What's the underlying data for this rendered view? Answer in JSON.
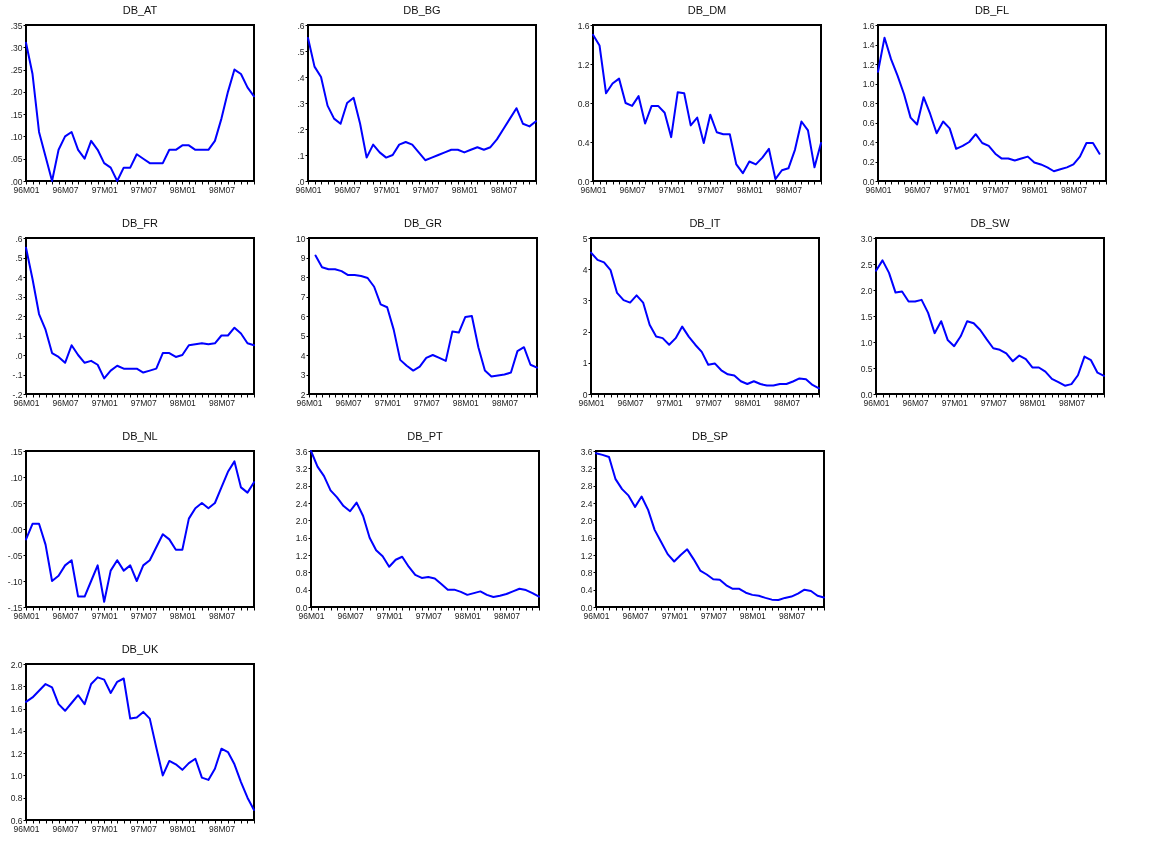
{
  "chart_data": [
    {
      "type": "line",
      "title": "DB_AT",
      "categories": [
        "96M01",
        null,
        null,
        null,
        null,
        null,
        "96M07",
        null,
        null,
        null,
        null,
        null,
        "97M01",
        null,
        null,
        null,
        null,
        null,
        "97M07",
        null,
        null,
        null,
        null,
        null,
        "98M01",
        null,
        null,
        null,
        null,
        null,
        "98M07",
        null,
        null,
        null,
        null,
        null
      ],
      "series": [
        {
          "color": "#0000ff",
          "values": [
            0.31,
            0.24,
            0.11,
            0.055,
            0.0,
            0.07,
            0.1,
            0.11,
            0.07,
            0.05,
            0.09,
            0.07,
            0.04,
            0.03,
            0.0,
            0.03,
            0.03,
            0.06,
            0.05,
            0.04,
            0.04,
            0.04,
            0.07,
            0.07,
            0.08,
            0.08,
            0.07,
            0.07,
            0.07,
            0.09,
            0.14,
            0.2,
            0.25,
            0.24,
            0.21,
            0.19
          ]
        }
      ],
      "ylim": [
        0,
        0.35
      ],
      "yticks": [
        {
          "value": 0,
          "label": ".00"
        },
        {
          "value": 0.05,
          "label": ".05"
        },
        {
          "value": 0.1,
          "label": ".10"
        },
        {
          "value": 0.15,
          "label": ".15"
        },
        {
          "value": 0.2,
          "label": ".20"
        },
        {
          "value": 0.25,
          "label": ".25"
        },
        {
          "value": 0.3,
          "label": ".30"
        },
        {
          "value": 0.35,
          "label": ".35"
        }
      ]
    },
    {
      "type": "line",
      "title": "DB_BG",
      "categories": [
        "96M01",
        null,
        null,
        null,
        null,
        null,
        "96M07",
        null,
        null,
        null,
        null,
        null,
        "97M01",
        null,
        null,
        null,
        null,
        null,
        "97M07",
        null,
        null,
        null,
        null,
        null,
        "98M01",
        null,
        null,
        null,
        null,
        null,
        "98M07",
        null,
        null,
        null,
        null,
        null
      ],
      "series": [
        {
          "color": "#0000ff",
          "values": [
            0.55,
            0.44,
            0.4,
            0.29,
            0.24,
            0.22,
            0.3,
            0.32,
            0.22,
            0.09,
            0.14,
            0.11,
            0.09,
            0.1,
            0.14,
            0.15,
            0.14,
            0.11,
            0.08,
            0.09,
            0.1,
            0.11,
            0.12,
            0.12,
            0.11,
            0.12,
            0.13,
            0.12,
            0.13,
            0.16,
            0.2,
            0.24,
            0.28,
            0.22,
            0.21,
            0.23
          ]
        }
      ],
      "ylim": [
        0,
        0.6
      ],
      "yticks": [
        {
          "value": 0,
          "label": ".0"
        },
        {
          "value": 0.1,
          "label": ".1"
        },
        {
          "value": 0.2,
          "label": ".2"
        },
        {
          "value": 0.3,
          "label": ".3"
        },
        {
          "value": 0.4,
          "label": ".4"
        },
        {
          "value": 0.5,
          "label": ".5"
        },
        {
          "value": 0.6,
          "label": ".6"
        }
      ]
    },
    {
      "type": "line",
      "title": "DB_DM",
      "categories": [
        "96M01",
        null,
        null,
        null,
        null,
        null,
        "96M07",
        null,
        null,
        null,
        null,
        null,
        "97M01",
        null,
        null,
        null,
        null,
        null,
        "97M07",
        null,
        null,
        null,
        null,
        null,
        "98M01",
        null,
        null,
        null,
        null,
        null,
        "98M07",
        null,
        null,
        null,
        null,
        null
      ],
      "series": [
        {
          "color": "#0000ff",
          "values": [
            1.5,
            1.39,
            0.9,
            1.0,
            1.05,
            0.8,
            0.77,
            0.87,
            0.59,
            0.77,
            0.77,
            0.7,
            0.45,
            0.91,
            0.9,
            0.57,
            0.65,
            0.39,
            0.68,
            0.5,
            0.48,
            0.48,
            0.17,
            0.08,
            0.2,
            0.17,
            0.24,
            0.33,
            0.02,
            0.11,
            0.13,
            0.32,
            0.61,
            0.52,
            0.14,
            0.39
          ]
        }
      ],
      "ylim": [
        0,
        1.6
      ],
      "yticks": [
        {
          "value": 0,
          "label": "0.0"
        },
        {
          "value": 0.4,
          "label": "0.4"
        },
        {
          "value": 0.8,
          "label": "0.8"
        },
        {
          "value": 1.2,
          "label": "1.2"
        },
        {
          "value": 1.6,
          "label": "1.6"
        }
      ]
    },
    {
      "type": "line",
      "title": "DB_FL",
      "categories": [
        "96M01",
        null,
        null,
        null,
        null,
        null,
        "96M07",
        null,
        null,
        null,
        null,
        null,
        "97M01",
        null,
        null,
        null,
        null,
        null,
        "97M07",
        null,
        null,
        null,
        null,
        null,
        "98M01",
        null,
        null,
        null,
        null,
        null,
        "98M07",
        null,
        null,
        null,
        null,
        null
      ],
      "series": [
        {
          "color": "#0000ff",
          "values": [
            1.12,
            1.47,
            1.25,
            1.08,
            0.89,
            0.65,
            0.58,
            0.86,
            0.69,
            0.49,
            0.61,
            0.54,
            0.33,
            0.36,
            0.4,
            0.48,
            0.39,
            0.36,
            0.28,
            0.23,
            0.23,
            0.21,
            0.23,
            0.25,
            0.19,
            0.17,
            0.14,
            0.1,
            0.12,
            0.14,
            0.17,
            0.25,
            0.39,
            0.39,
            0.28,
            null
          ]
        }
      ],
      "ylim": [
        0,
        1.6
      ],
      "yticks": [
        {
          "value": 0,
          "label": "0.0"
        },
        {
          "value": 0.2,
          "label": "0.2"
        },
        {
          "value": 0.4,
          "label": "0.4"
        },
        {
          "value": 0.6,
          "label": "0.6"
        },
        {
          "value": 0.8,
          "label": "0.8"
        },
        {
          "value": 1.0,
          "label": "1.0"
        },
        {
          "value": 1.2,
          "label": "1.2"
        },
        {
          "value": 1.4,
          "label": "1.4"
        },
        {
          "value": 1.6,
          "label": "1.6"
        }
      ]
    },
    {
      "type": "line",
      "title": "DB_FR",
      "categories": [
        "96M01",
        null,
        null,
        null,
        null,
        null,
        "96M07",
        null,
        null,
        null,
        null,
        null,
        "97M01",
        null,
        null,
        null,
        null,
        null,
        "97M07",
        null,
        null,
        null,
        null,
        null,
        "98M01",
        null,
        null,
        null,
        null,
        null,
        "98M07",
        null,
        null,
        null,
        null,
        null
      ],
      "series": [
        {
          "color": "#0000ff",
          "values": [
            0.55,
            0.39,
            0.21,
            0.13,
            0.01,
            -0.01,
            -0.04,
            0.05,
            0.0,
            -0.04,
            -0.03,
            -0.05,
            -0.12,
            -0.08,
            -0.055,
            -0.07,
            -0.07,
            -0.07,
            -0.09,
            -0.08,
            -0.07,
            0.01,
            0.01,
            -0.01,
            0.0,
            0.05,
            0.055,
            0.06,
            0.055,
            0.06,
            0.1,
            0.1,
            0.14,
            0.11,
            0.06,
            0.05
          ]
        }
      ],
      "ylim": [
        -0.2,
        0.6
      ],
      "yticks": [
        {
          "value": -0.2,
          "label": "-.2"
        },
        {
          "value": -0.1,
          "label": "-.1"
        },
        {
          "value": 0,
          "label": ".0"
        },
        {
          "value": 0.1,
          "label": ".1"
        },
        {
          "value": 0.2,
          "label": ".2"
        },
        {
          "value": 0.3,
          "label": ".3"
        },
        {
          "value": 0.4,
          "label": ".4"
        },
        {
          "value": 0.5,
          "label": ".5"
        },
        {
          "value": 0.6,
          "label": ".6"
        }
      ]
    },
    {
      "type": "line",
      "title": "DB_GR",
      "categories": [
        "96M01",
        null,
        null,
        null,
        null,
        null,
        "96M07",
        null,
        null,
        null,
        null,
        null,
        "97M01",
        null,
        null,
        null,
        null,
        null,
        "97M07",
        null,
        null,
        null,
        null,
        null,
        "98M01",
        null,
        null,
        null,
        null,
        null,
        "98M07",
        null,
        null,
        null,
        null,
        null
      ],
      "series": [
        {
          "color": "#0000ff",
          "values": [
            null,
            9.1,
            8.5,
            8.4,
            8.4,
            8.3,
            8.1,
            8.1,
            8.05,
            7.95,
            7.5,
            6.6,
            6.45,
            5.3,
            3.75,
            3.45,
            3.2,
            3.4,
            3.85,
            4.0,
            3.85,
            3.7,
            5.2,
            5.15,
            5.95,
            6.0,
            4.4,
            3.2,
            2.9,
            2.95,
            3.0,
            3.1,
            4.2,
            4.4,
            3.5,
            3.35
          ]
        }
      ],
      "ylim": [
        2,
        10
      ],
      "yticks": [
        2,
        3,
        4,
        5,
        6,
        7,
        8,
        9,
        10
      ]
    },
    {
      "type": "line",
      "title": "DB_IT",
      "categories": [
        "96M01",
        null,
        null,
        null,
        null,
        null,
        "96M07",
        null,
        null,
        null,
        null,
        null,
        "97M01",
        null,
        null,
        null,
        null,
        null,
        "97M07",
        null,
        null,
        null,
        null,
        null,
        "98M01",
        null,
        null,
        null,
        null,
        null,
        "98M07",
        null,
        null,
        null,
        null,
        null
      ],
      "series": [
        {
          "color": "#0000ff",
          "values": [
            4.53,
            4.3,
            4.22,
            3.97,
            3.24,
            3.01,
            2.93,
            3.16,
            2.93,
            2.22,
            1.84,
            1.79,
            1.58,
            1.79,
            2.16,
            1.84,
            1.58,
            1.35,
            0.94,
            0.98,
            0.76,
            0.63,
            0.59,
            0.41,
            0.32,
            0.41,
            0.32,
            0.27,
            0.27,
            0.32,
            0.32,
            0.4,
            0.5,
            0.47,
            0.29,
            0.18
          ]
        }
      ],
      "ylim": [
        0,
        5
      ],
      "yticks": [
        0,
        1,
        2,
        3,
        4,
        5
      ]
    },
    {
      "type": "line",
      "title": "DB_SW",
      "categories": [
        "96M01",
        null,
        null,
        null,
        null,
        null,
        "96M07",
        null,
        null,
        null,
        null,
        null,
        "97M01",
        null,
        null,
        null,
        null,
        null,
        "97M07",
        null,
        null,
        null,
        null,
        null,
        "98M01",
        null,
        null,
        null,
        null,
        null,
        "98M07",
        null,
        null,
        null,
        null,
        null
      ],
      "series": [
        {
          "color": "#0000ff",
          "values": [
            2.37,
            2.57,
            2.33,
            1.95,
            1.97,
            1.78,
            1.78,
            1.81,
            1.56,
            1.17,
            1.4,
            1.04,
            0.92,
            1.11,
            1.4,
            1.36,
            1.23,
            1.05,
            0.88,
            0.85,
            0.78,
            0.63,
            0.74,
            0.67,
            0.51,
            0.51,
            0.43,
            0.29,
            0.23,
            0.16,
            0.19,
            0.36,
            0.72,
            0.65,
            0.41,
            0.35
          ]
        }
      ],
      "ylim": [
        0,
        3.0
      ],
      "yticks": [
        {
          "value": 0,
          "label": "0.0"
        },
        {
          "value": 0.5,
          "label": "0.5"
        },
        {
          "value": 1.0,
          "label": "1.0"
        },
        {
          "value": 1.5,
          "label": "1.5"
        },
        {
          "value": 2.0,
          "label": "2.0"
        },
        {
          "value": 2.5,
          "label": "2.5"
        },
        {
          "value": 3.0,
          "label": "3.0"
        }
      ]
    },
    {
      "type": "line",
      "title": "DB_NL",
      "categories": [
        "96M01",
        null,
        null,
        null,
        null,
        null,
        "96M07",
        null,
        null,
        null,
        null,
        null,
        "97M01",
        null,
        null,
        null,
        null,
        null,
        "97M07",
        null,
        null,
        null,
        null,
        null,
        "98M01",
        null,
        null,
        null,
        null,
        null,
        "98M07",
        null,
        null,
        null,
        null,
        null
      ],
      "series": [
        {
          "color": "#0000ff",
          "values": [
            -0.02,
            0.01,
            0.01,
            -0.03,
            -0.1,
            -0.09,
            -0.07,
            -0.06,
            -0.13,
            -0.13,
            -0.1,
            -0.07,
            -0.14,
            -0.08,
            -0.06,
            -0.08,
            -0.07,
            -0.1,
            -0.07,
            -0.06,
            -0.035,
            -0.01,
            -0.02,
            -0.04,
            -0.04,
            0.02,
            0.04,
            0.05,
            0.04,
            0.05,
            0.08,
            0.11,
            0.13,
            0.08,
            0.07,
            0.09
          ]
        }
      ],
      "ylim": [
        -0.15,
        0.15
      ],
      "yticks": [
        {
          "value": -0.15,
          "label": "-.15"
        },
        {
          "value": -0.1,
          "label": "-.10"
        },
        {
          "value": -0.05,
          "label": "-.05"
        },
        {
          "value": 0,
          "label": ".00"
        },
        {
          "value": 0.05,
          "label": ".05"
        },
        {
          "value": 0.1,
          "label": ".10"
        },
        {
          "value": 0.15,
          "label": ".15"
        }
      ]
    },
    {
      "type": "line",
      "title": "DB_PT",
      "categories": [
        "96M01",
        null,
        null,
        null,
        null,
        null,
        "96M07",
        null,
        null,
        null,
        null,
        null,
        "97M01",
        null,
        null,
        null,
        null,
        null,
        "97M07",
        null,
        null,
        null,
        null,
        null,
        "98M01",
        null,
        null,
        null,
        null,
        null,
        "98M07",
        null,
        null,
        null,
        null,
        null
      ],
      "series": [
        {
          "color": "#0000ff",
          "values": [
            3.6,
            3.24,
            3.02,
            2.69,
            2.53,
            2.33,
            2.21,
            2.41,
            2.1,
            1.6,
            1.31,
            1.17,
            0.93,
            1.09,
            1.16,
            0.93,
            0.74,
            0.67,
            0.69,
            0.66,
            0.53,
            0.4,
            0.4,
            0.35,
            0.28,
            0.32,
            0.36,
            0.28,
            0.23,
            0.26,
            0.3,
            0.36,
            0.42,
            0.39,
            0.32,
            0.24
          ]
        }
      ],
      "ylim": [
        0,
        3.6
      ],
      "yticks": [
        {
          "value": 0,
          "label": "0.0"
        },
        {
          "value": 0.4,
          "label": "0.4"
        },
        {
          "value": 0.8,
          "label": "0.8"
        },
        {
          "value": 1.2,
          "label": "1.2"
        },
        {
          "value": 1.6,
          "label": "1.6"
        },
        {
          "value": 2.0,
          "label": "2.0"
        },
        {
          "value": 2.4,
          "label": "2.4"
        },
        {
          "value": 2.8,
          "label": "2.8"
        },
        {
          "value": 3.2,
          "label": "3.2"
        },
        {
          "value": 3.6,
          "label": "3.6"
        }
      ]
    },
    {
      "type": "line",
      "title": "DB_SP",
      "categories": [
        "96M01",
        null,
        null,
        null,
        null,
        null,
        "96M07",
        null,
        null,
        null,
        null,
        null,
        "97M01",
        null,
        null,
        null,
        null,
        null,
        "97M07",
        null,
        null,
        null,
        null,
        null,
        "98M01",
        null,
        null,
        null,
        null,
        null,
        "98M07",
        null,
        null,
        null,
        null,
        null
      ],
      "series": [
        {
          "color": "#0000ff",
          "values": [
            3.55,
            3.51,
            3.46,
            2.95,
            2.72,
            2.57,
            2.31,
            2.55,
            2.24,
            1.78,
            1.5,
            1.22,
            1.05,
            1.2,
            1.33,
            1.1,
            0.84,
            0.75,
            0.64,
            0.63,
            0.5,
            0.42,
            0.42,
            0.33,
            0.28,
            0.26,
            0.21,
            0.17,
            0.16,
            0.21,
            0.24,
            0.31,
            0.4,
            0.37,
            0.26,
            0.22
          ]
        }
      ],
      "ylim": [
        0,
        3.6
      ],
      "yticks": [
        {
          "value": 0,
          "label": "0.0"
        },
        {
          "value": 0.4,
          "label": "0.4"
        },
        {
          "value": 0.8,
          "label": "0.8"
        },
        {
          "value": 1.2,
          "label": "1.2"
        },
        {
          "value": 1.6,
          "label": "1.6"
        },
        {
          "value": 2.0,
          "label": "2.0"
        },
        {
          "value": 2.4,
          "label": "2.4"
        },
        {
          "value": 2.8,
          "label": "2.8"
        },
        {
          "value": 3.2,
          "label": "3.2"
        },
        {
          "value": 3.6,
          "label": "3.6"
        }
      ]
    },
    {
      "type": "line",
      "title": "DB_UK",
      "categories": [
        "96M01",
        null,
        null,
        null,
        null,
        null,
        "96M07",
        null,
        null,
        null,
        null,
        null,
        "97M01",
        null,
        null,
        null,
        null,
        null,
        "97M07",
        null,
        null,
        null,
        null,
        null,
        "98M01",
        null,
        null,
        null,
        null,
        null,
        "98M07",
        null,
        null,
        null,
        null,
        null
      ],
      "series": [
        {
          "color": "#0000ff",
          "values": [
            1.66,
            1.7,
            1.76,
            1.82,
            1.79,
            1.64,
            1.58,
            1.65,
            1.72,
            1.64,
            1.82,
            1.88,
            1.86,
            1.74,
            1.84,
            1.87,
            1.51,
            1.52,
            1.57,
            1.51,
            1.25,
            1.0,
            1.13,
            1.1,
            1.05,
            1.11,
            1.15,
            0.98,
            0.96,
            1.06,
            1.24,
            1.21,
            1.1,
            0.94,
            0.8,
            0.69
          ]
        }
      ],
      "ylim": [
        0.6,
        2.0
      ],
      "yticks": [
        {
          "value": 0.6,
          "label": "0.6"
        },
        {
          "value": 0.8,
          "label": "0.8"
        },
        {
          "value": 1.0,
          "label": "1.0"
        },
        {
          "value": 1.2,
          "label": "1.2"
        },
        {
          "value": 1.4,
          "label": "1.4"
        },
        {
          "value": 1.6,
          "label": "1.6"
        },
        {
          "value": 1.8,
          "label": "1.8"
        },
        {
          "value": 2.0,
          "label": "2.0"
        }
      ]
    }
  ]
}
